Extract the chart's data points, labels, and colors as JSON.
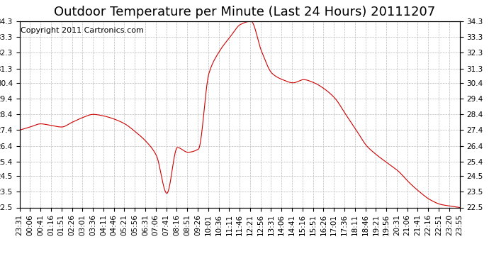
{
  "title": "Outdoor Temperature per Minute (Last 24 Hours) 20111207",
  "copyright": "Copyright 2011 Cartronics.com",
  "line_color": "#cc0000",
  "bg_color": "#ffffff",
  "plot_bg_color": "#ffffff",
  "grid_color": "#bbbbbb",
  "ylim": [
    22.5,
    34.3
  ],
  "yticks": [
    22.5,
    23.5,
    24.5,
    25.4,
    26.4,
    27.4,
    28.4,
    29.4,
    30.4,
    31.3,
    32.3,
    33.3,
    34.3
  ],
  "xtick_labels": [
    "23:31",
    "00:06",
    "00:41",
    "01:16",
    "01:51",
    "02:26",
    "03:01",
    "03:36",
    "04:11",
    "04:46",
    "05:21",
    "05:56",
    "06:31",
    "07:06",
    "07:41",
    "08:16",
    "08:51",
    "09:26",
    "10:01",
    "10:36",
    "11:11",
    "11:46",
    "12:21",
    "12:56",
    "13:31",
    "14:06",
    "14:41",
    "15:16",
    "15:51",
    "16:26",
    "17:01",
    "17:36",
    "18:11",
    "18:46",
    "19:21",
    "19:56",
    "20:31",
    "21:06",
    "21:41",
    "22:16",
    "22:51",
    "23:20",
    "23:55"
  ],
  "key_times": [
    0,
    35,
    70,
    105,
    140,
    175,
    210,
    245,
    280,
    315,
    350,
    385,
    420,
    455,
    490,
    525,
    560,
    595,
    630,
    665,
    700,
    735,
    770,
    805,
    840,
    875,
    910,
    945,
    980,
    1015,
    1050,
    1085,
    1120,
    1155,
    1190,
    1225,
    1260,
    1295,
    1330,
    1365,
    1400,
    1429,
    1464
  ],
  "key_values": [
    27.4,
    27.6,
    27.8,
    27.7,
    27.6,
    27.9,
    28.2,
    28.4,
    28.3,
    28.1,
    27.8,
    27.3,
    26.7,
    25.8,
    23.4,
    26.3,
    26.0,
    26.2,
    31.0,
    32.4,
    33.3,
    34.1,
    34.3,
    32.4,
    31.0,
    30.6,
    30.4,
    30.6,
    30.4,
    30.0,
    29.4,
    28.4,
    27.4,
    26.4,
    25.8,
    25.3,
    24.8,
    24.1,
    23.5,
    23.0,
    22.7,
    22.6,
    22.5
  ],
  "title_fontsize": 13,
  "tick_fontsize": 7.5,
  "copyright_fontsize": 8
}
